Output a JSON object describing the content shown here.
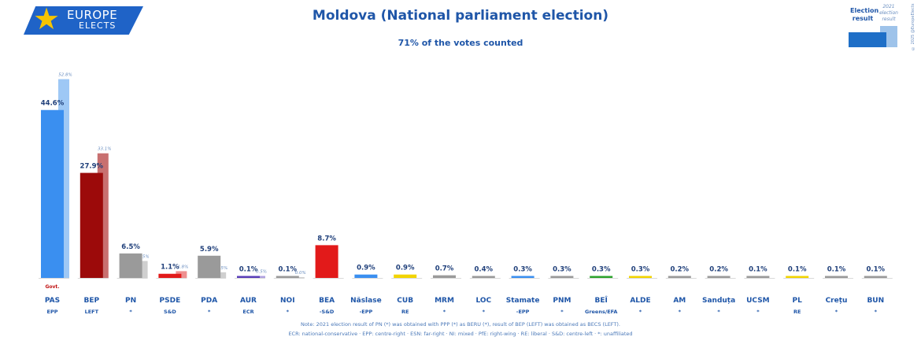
{
  "logo": {
    "line1": "EUROPE",
    "line2": "ELECTS"
  },
  "title": "Moldova (National parliament election)",
  "subtitle": "71% of the votes counted",
  "legend": {
    "current_label": "Election result",
    "previous_label": "2021 election result"
  },
  "credit": "© 2025 @EuropeElects",
  "notes": {
    "line1": "Note: 2021 election result of PN (*) was obtained with PPP (*) as BERU (*), result of BEP (LEFT) was obtained as BECS (LEFT).",
    "line2": "ECR: national-conservative · EPP: centre-right · ESN: far-right · NI: mixed · PfE: right-wing · RE: liberal · S&D: centre-left · *: unaffiliated"
  },
  "chart_data": {
    "type": "bar",
    "ylim": [
      0,
      55
    ],
    "categories": [
      "PAS",
      "BEP",
      "PN",
      "PSDE",
      "PDA",
      "AUR",
      "NOI",
      "BEA",
      "Năslase",
      "CUB",
      "MRM",
      "LOC",
      "Stamate",
      "PNM",
      "BEÎ",
      "ALDE",
      "AM",
      "Sanduța",
      "UCSM",
      "PL",
      "Crețu",
      "BUN"
    ],
    "groups": [
      "EPP",
      "LEFT",
      "*",
      "S&D",
      "*",
      "ECR",
      "*",
      "-S&D",
      "-EPP",
      "RE",
      "*",
      "*",
      "-EPP",
      "*",
      "Greens/EFA",
      "*",
      "*",
      "*",
      "*",
      "RE",
      "*",
      "*"
    ],
    "series": [
      {
        "values": [
          44.6,
          27.9,
          6.5,
          1.1,
          5.9,
          0.1,
          0.1,
          8.7,
          0.9,
          0.9,
          0.7,
          0.4,
          0.3,
          0.3,
          0.3,
          0.3,
          0.2,
          0.2,
          0.1,
          0.1,
          0.1,
          0.1
        ]
      },
      {
        "values": [
          52.8,
          33.1,
          4.5,
          1.8,
          1.5,
          0.5,
          0.0,
          null,
          null,
          null,
          null,
          null,
          null,
          null,
          null,
          null,
          null,
          null,
          null,
          null,
          null,
          null
        ]
      }
    ],
    "value_labels": [
      "44.6%",
      "27.9%",
      "6.5%",
      "1.1%",
      "5.9%",
      "0.1%",
      "0.1%",
      "8.7%",
      "0.9%",
      "0.9%",
      "0.7%",
      "0.4%",
      "0.3%",
      "0.3%",
      "0.3%",
      "0.3%",
      "0.2%",
      "0.2%",
      "0.1%",
      "0.1%",
      "0.1%",
      "0.1%"
    ],
    "previous_labels": [
      "52.8%",
      "33.1%",
      "4.5%",
      "1.8%",
      "1.5%",
      "0.5%",
      "0.0%",
      null,
      null,
      null,
      null,
      null,
      null,
      null,
      null,
      null,
      null,
      null,
      null,
      null,
      null,
      null
    ],
    "colors": [
      "#3a8ff0",
      "#9c0a0a",
      "#9a9a9a",
      "#e21a1a",
      "#9a9a9a",
      "#5a3fb8",
      "#9a9a9a",
      "#e21a1a",
      "#3a8ff0",
      "#f2d400",
      "#9a9a9a",
      "#9a9a9a",
      "#3a8ff0",
      "#9a9a9a",
      "#2ea32e",
      "#f2d400",
      "#9a9a9a",
      "#9a9a9a",
      "#9a9a9a",
      "#f2d400",
      "#9a9a9a",
      "#9a9a9a"
    ],
    "previous_colors": [
      "#9ec8f5",
      "#c87070",
      "#cfcfcf",
      "#ee9090",
      "#cfcfcf",
      "#b0a2e0",
      "#cfcfcf",
      null,
      null,
      null,
      null,
      null,
      null,
      null,
      null,
      null,
      null,
      null,
      null,
      null,
      null,
      null
    ],
    "annotations": [
      {
        "category": "PAS",
        "text": "Govt."
      }
    ]
  }
}
